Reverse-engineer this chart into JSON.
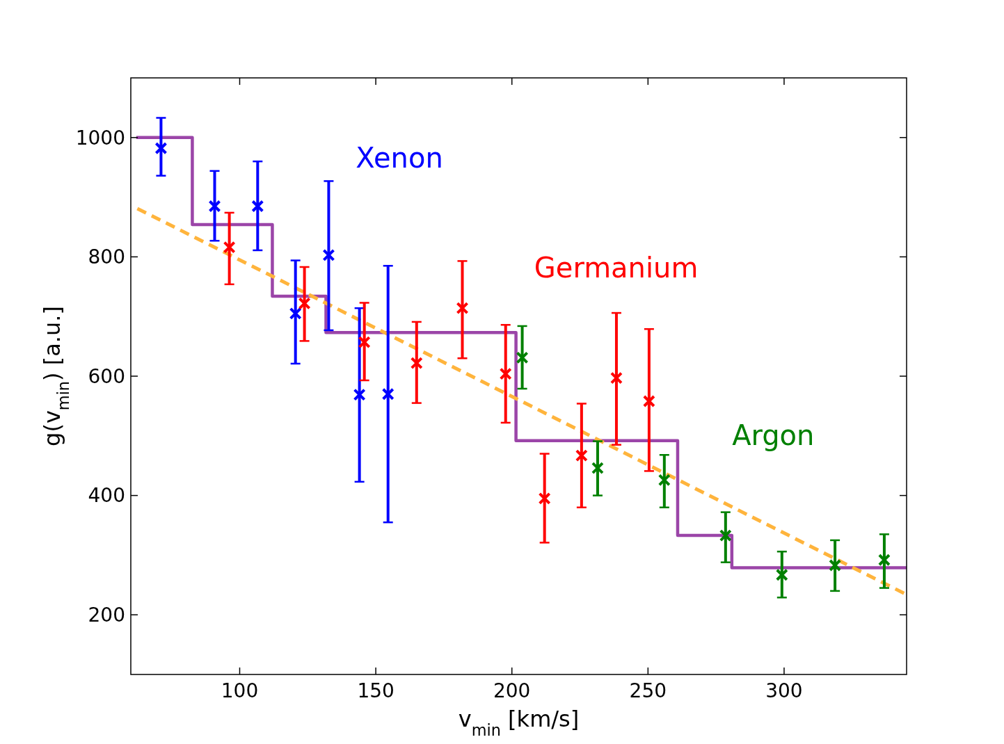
{
  "chart_data": {
    "type": "scatter",
    "xlabel": "v$_{min}$ [km/s]",
    "ylabel": "g(v$_{min}$) [a.u.]",
    "xlim": [
      60,
      345
    ],
    "ylim": [
      100,
      1100
    ],
    "xticks": [
      100,
      150,
      200,
      250,
      300
    ],
    "yticks": [
      200,
      400,
      600,
      800,
      1000
    ],
    "series": [
      {
        "name": "Xenon",
        "color": "#0000ff",
        "marker": "cross",
        "x": [
          71.1,
          90.8,
          106.6,
          120.5,
          132.7,
          144,
          154.5
        ],
        "values": [
          982,
          885,
          885,
          705,
          803,
          569,
          570
        ],
        "errors": [
          [
            936,
            1033
          ],
          [
            827,
            944
          ],
          [
            811,
            960
          ],
          [
            621,
            794
          ],
          [
            677,
            927
          ],
          [
            423,
            714
          ],
          [
            355,
            785
          ]
        ]
      },
      {
        "name": "Germanium",
        "color": "#ff0000",
        "marker": "cross",
        "x": [
          96.2,
          123.8,
          145.8,
          165,
          181.8,
          197.7,
          212,
          225.6,
          238.4,
          250.4
        ],
        "values": [
          816,
          722,
          657,
          622,
          714,
          604,
          395,
          467,
          597,
          558
        ],
        "errors": [
          [
            754,
            874
          ],
          [
            659,
            783
          ],
          [
            593,
            723
          ],
          [
            555,
            691
          ],
          [
            630,
            793
          ],
          [
            522,
            686
          ],
          [
            321,
            470
          ],
          [
            380,
            554
          ],
          [
            485,
            706
          ],
          [
            441,
            679
          ]
        ]
      },
      {
        "name": "Argon",
        "color": "#008000",
        "marker": "cross",
        "x": [
          203.8,
          231.5,
          256,
          278.5,
          299.2,
          318.7,
          336.8
        ],
        "values": [
          631,
          446,
          426,
          333,
          267,
          283,
          292
        ],
        "errors": [
          [
            579,
            684
          ],
          [
            400,
            491
          ],
          [
            380,
            468
          ],
          [
            288,
            372
          ],
          [
            229,
            306
          ],
          [
            240,
            325
          ],
          [
            245,
            335
          ]
        ]
      },
      {
        "type": "step",
        "color": "#9b45a8",
        "x": [
          62,
          82.6,
          112,
          131.7,
          201.5,
          260.9,
          280.8,
          345
        ],
        "values": [
          1000,
          854,
          734,
          673,
          492,
          333,
          279,
          279
        ]
      },
      {
        "type": "line",
        "color": "#ffb43c",
        "line_style": "dashed",
        "x": [
          62.4,
          345
        ],
        "values": [
          881,
          234
        ]
      }
    ]
  }
}
